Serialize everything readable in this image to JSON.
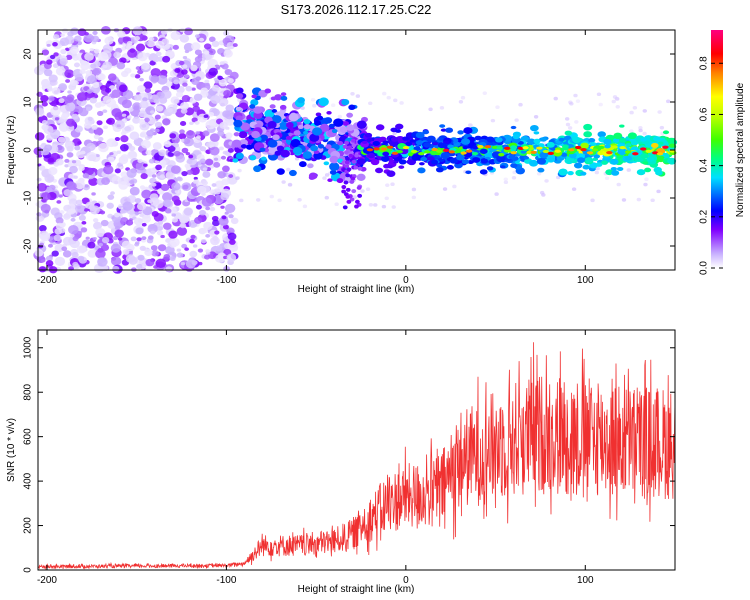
{
  "figure_title": "S173.2026.112.17.25.C22",
  "chart_data": [
    {
      "type": "heatmap",
      "title": "S173.2026.112.17.25.C22",
      "xlabel": "Height of straight line (km)",
      "ylabel": "Frequency (Hz)",
      "xlim": [
        -205,
        150
      ],
      "ylim": [
        -25,
        25
      ],
      "xticks": [
        -200,
        -100,
        0,
        100
      ],
      "yticks": [
        -20,
        -10,
        0,
        10,
        20
      ],
      "colorbar": {
        "label": "Normalized spectral amplitude",
        "range": [
          0.0,
          0.93
        ],
        "ticks": [
          0.0,
          0.2,
          0.4,
          0.6,
          0.8
        ],
        "colors": [
          "#e8e0ff",
          "#8000ff",
          "#0000ff",
          "#00c0ff",
          "#00ff80",
          "#80ff00",
          "#ffff00",
          "#ff8000",
          "#ff0000",
          "#ff0080"
        ]
      },
      "regions": [
        {
          "x_range": [
            -205,
            -95
          ],
          "description_values": {
            "freq_range": [
              -25,
              25
            ],
            "amplitude_range": [
              0.02,
              0.12
            ]
          }
        },
        {
          "x_range": [
            -95,
            -25
          ],
          "description_values": {
            "freq_center_start": 5,
            "freq_center_end": 0,
            "amplitude_range": [
              0.1,
              0.3
            ]
          }
        },
        {
          "x_range": [
            -25,
            150
          ],
          "description_values": {
            "freq_center": 0,
            "amplitude_range": [
              0.3,
              0.9
            ]
          }
        }
      ]
    },
    {
      "type": "line",
      "xlabel": "Height of straight line (km)",
      "ylabel": "SNR (10 * v/v)",
      "xlim": [
        -205,
        150
      ],
      "ylim": [
        0,
        1080
      ],
      "xticks": [
        -200,
        -100,
        0,
        100
      ],
      "yticks": [
        0,
        200,
        400,
        600,
        800,
        1000
      ],
      "color": "#f03030",
      "series": [
        {
          "name": "SNR",
          "x": [
            -205,
            -150,
            -100,
            -90,
            -85,
            -80,
            -60,
            -40,
            -30,
            -20,
            -10,
            0,
            10,
            20,
            30,
            40,
            50,
            60,
            80,
            100,
            120,
            150
          ],
          "values": [
            15,
            18,
            20,
            30,
            70,
            110,
            110,
            130,
            160,
            230,
            300,
            330,
            340,
            370,
            500,
            520,
            560,
            590,
            620,
            600,
            580,
            570
          ]
        }
      ]
    }
  ]
}
